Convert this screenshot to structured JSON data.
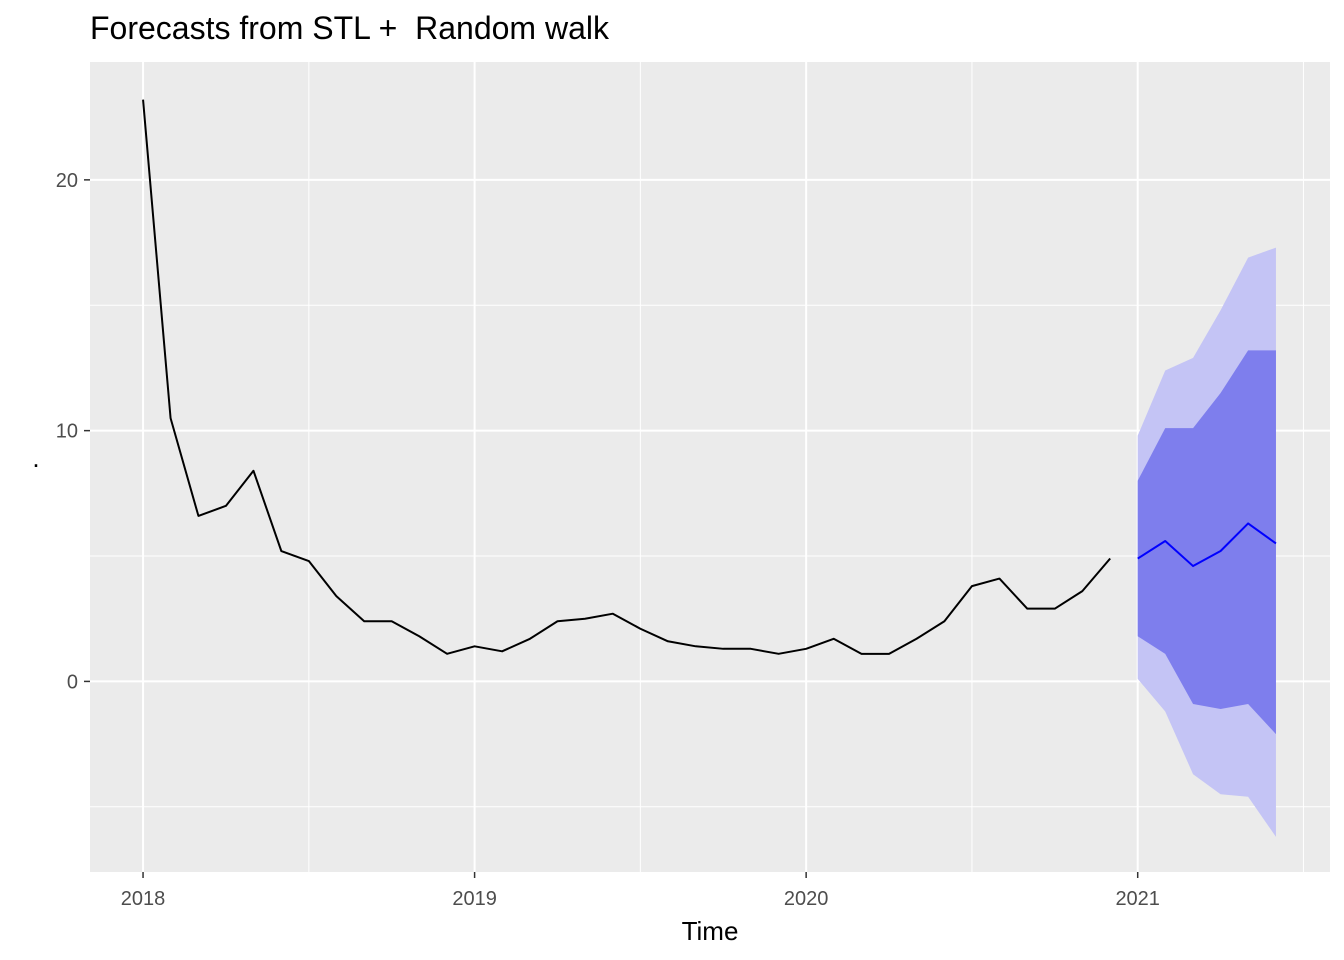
{
  "chart_data": {
    "type": "line",
    "title": "Forecasts from STL +  Random walk",
    "xlabel": "Time",
    "ylabel": ".",
    "xlim": [
      2017.84,
      2021.58
    ],
    "ylim": [
      -7.6,
      24.7
    ],
    "x_ticks": [
      2018,
      2019,
      2020,
      2021
    ],
    "x_tick_labels": [
      "2018",
      "2019",
      "2020",
      "2021"
    ],
    "y_ticks": [
      0,
      10,
      20
    ],
    "y_tick_labels": [
      "0",
      "10",
      "20"
    ],
    "grid": true,
    "panel_background": "#ebebeb",
    "series": [
      {
        "role": "observed",
        "color": "#000000",
        "x": [
          2018.0,
          2018.083,
          2018.167,
          2018.25,
          2018.333,
          2018.417,
          2018.5,
          2018.583,
          2018.667,
          2018.75,
          2018.833,
          2018.917,
          2019.0,
          2019.083,
          2019.167,
          2019.25,
          2019.333,
          2019.417,
          2019.5,
          2019.583,
          2019.667,
          2019.75,
          2019.833,
          2019.917,
          2020.0,
          2020.083,
          2020.167,
          2020.25,
          2020.333,
          2020.417,
          2020.5,
          2020.583,
          2020.667,
          2020.75,
          2020.833,
          2020.917
        ],
        "values": [
          23.2,
          10.5,
          6.6,
          7.0,
          8.4,
          5.2,
          4.8,
          3.4,
          2.4,
          2.4,
          1.8,
          1.1,
          1.4,
          1.2,
          1.7,
          2.4,
          2.5,
          2.7,
          2.1,
          1.6,
          1.4,
          1.3,
          1.3,
          1.1,
          1.3,
          1.7,
          1.1,
          1.1,
          1.7,
          2.4,
          3.8,
          4.1,
          2.9,
          2.9,
          3.6,
          4.9
        ]
      },
      {
        "role": "forecast",
        "color": "#0000ff",
        "x": [
          2021.0,
          2021.083,
          2021.167,
          2021.25,
          2021.333,
          2021.417
        ],
        "values": [
          4.9,
          5.6,
          4.6,
          5.2,
          6.3,
          5.5
        ],
        "lo80": [
          1.8,
          1.1,
          -0.9,
          -1.1,
          -0.9,
          -2.1
        ],
        "hi80": [
          8.0,
          10.1,
          10.1,
          11.5,
          13.2,
          13.2
        ],
        "lo95": [
          0.1,
          -1.2,
          -3.7,
          -4.5,
          -4.6,
          -6.2
        ],
        "hi95": [
          9.8,
          12.4,
          12.9,
          14.8,
          16.9,
          17.3
        ],
        "band80_color": "#7e7eed",
        "band95_color": "#c4c4f5"
      }
    ]
  }
}
